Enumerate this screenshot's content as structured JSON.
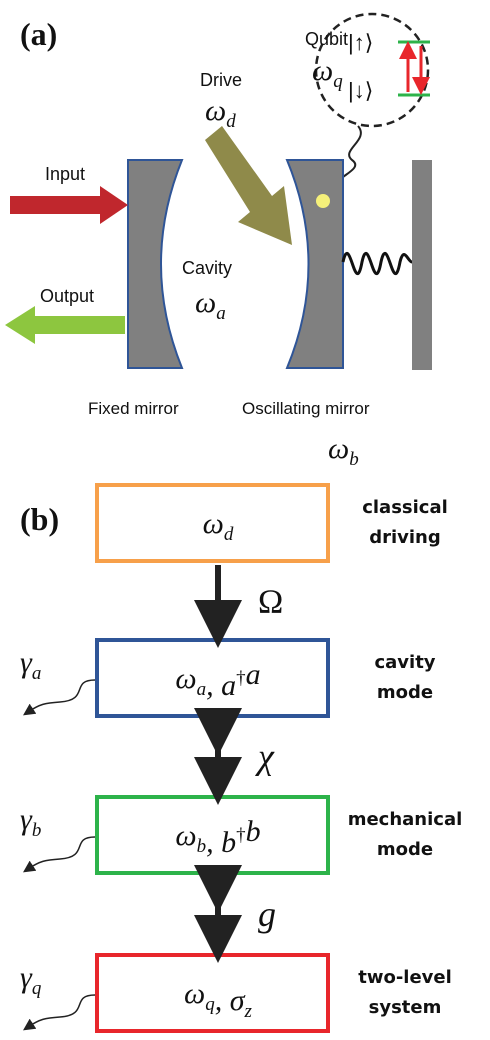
{
  "panel_a": {
    "label": "(a)",
    "qubit": {
      "title": "Qubit",
      "freq": [
        {
          "t": "ω",
          "sub": "q"
        }
      ],
      "up": "|↑⟩",
      "down": "|↓⟩"
    },
    "drive": {
      "title": "Drive",
      "freq": [
        {
          "t": "ω",
          "sub": "d"
        }
      ]
    },
    "input": "Input",
    "output": "Output",
    "cavity": {
      "title": "Cavity",
      "freq": [
        {
          "t": "ω",
          "sub": "a"
        }
      ]
    },
    "fixed_mirror": "Fixed mirror",
    "oscillating_mirror": {
      "title": "Oscillating mirror",
      "freq": [
        {
          "t": "ω",
          "sub": "b"
        }
      ]
    }
  },
  "panel_b": {
    "label": "(b)",
    "boxes": [
      {
        "content": [
          {
            "t": "ω",
            "sub": "d"
          }
        ],
        "label_lines": [
          "classical",
          "driving"
        ],
        "color": "#f7a04a"
      },
      {
        "content": [
          {
            "t": "ω",
            "sub": "a"
          },
          {
            "t": ",  "
          },
          {
            "t": "a",
            "sup": "†"
          },
          {
            "t": "a"
          }
        ],
        "label_lines": [
          "cavity",
          "mode"
        ],
        "color": "#2f5597",
        "loss": [
          {
            "t": "γ",
            "sub": "a"
          }
        ]
      },
      {
        "content": [
          {
            "t": "ω",
            "sub": "b"
          },
          {
            "t": ",  "
          },
          {
            "t": "b",
            "sup": "†"
          },
          {
            "t": "b"
          }
        ],
        "label_lines": [
          "mechanical",
          "mode"
        ],
        "color": "#2db34a",
        "loss": [
          {
            "t": "γ",
            "sub": "b"
          }
        ]
      },
      {
        "content": [
          {
            "t": "ω",
            "sub": "q"
          },
          {
            "t": ",  "
          },
          {
            "t": "σ",
            "sub": "z"
          }
        ],
        "label_lines": [
          "two-level",
          "system"
        ],
        "color": "#e8262b",
        "loss": [
          {
            "t": "γ",
            "sub": "q"
          }
        ]
      }
    ],
    "couplings": [
      "Ω",
      "χ",
      "g"
    ]
  }
}
